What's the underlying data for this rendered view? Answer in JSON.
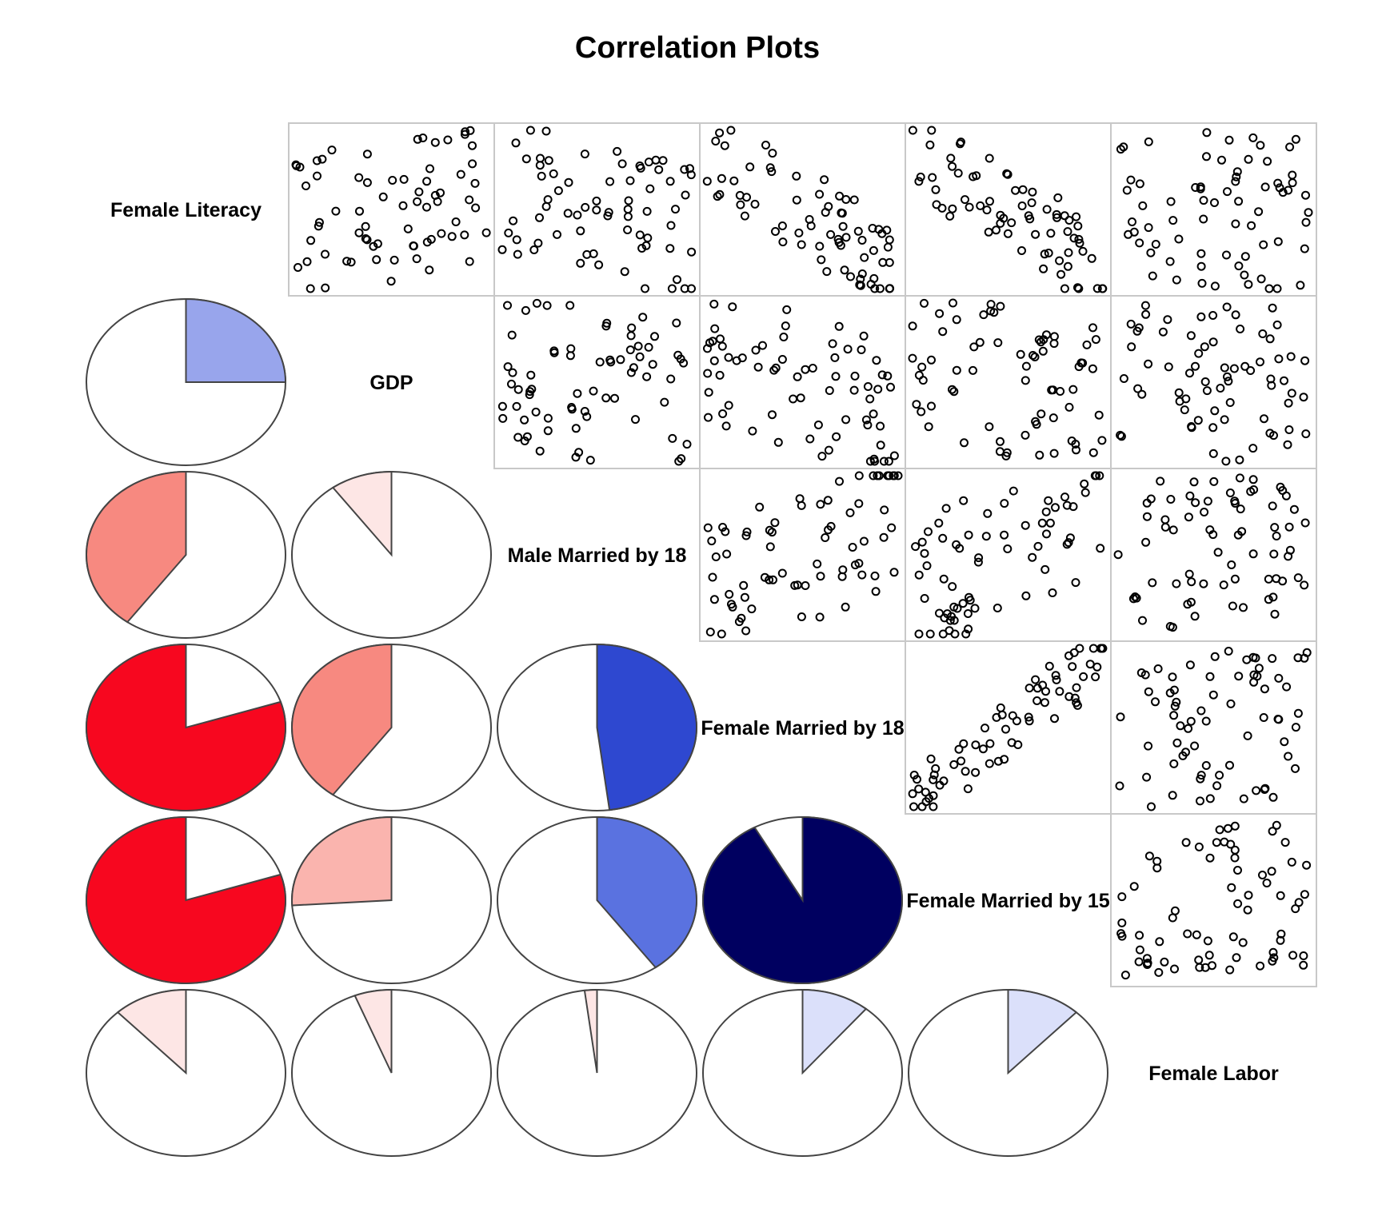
{
  "chart_data": {
    "type": "correlogram",
    "title": "Correlation Plots",
    "variables": [
      "Female Literacy",
      "GDP",
      "Male Married by 18",
      "Female Married by 18",
      "Female Married by 15",
      "Female Labor"
    ],
    "lower_panel": "pie",
    "upper_panel": "scatter",
    "colors": {
      "strong_negative": "#f7071f",
      "moderate_negative": "#f78980",
      "weak_negative": "#fab4ae",
      "very_weak_negative": "#fde6e5",
      "very_weak_positive": "#dbe0fa",
      "weak_positive": "#98a5ec",
      "moderate_positive": "#5a72e0",
      "strong_positive": "#2e48d0",
      "very_strong_positive": "#000060"
    },
    "correlations": [
      {
        "row": "GDP",
        "col": "Female Literacy",
        "r": 0.25
      },
      {
        "row": "Male Married by 18",
        "col": "Female Literacy",
        "r": -0.4
      },
      {
        "row": "Male Married by 18",
        "col": "GDP",
        "r": -0.1
      },
      {
        "row": "Female Married by 18",
        "col": "Female Literacy",
        "r": -0.8
      },
      {
        "row": "Female Married by 18",
        "col": "GDP",
        "r": -0.4
      },
      {
        "row": "Female Married by 18",
        "col": "Male Married by 18",
        "r": 0.48
      },
      {
        "row": "Female Married by 15",
        "col": "Female Literacy",
        "r": -0.8
      },
      {
        "row": "Female Married by 15",
        "col": "GDP",
        "r": -0.26
      },
      {
        "row": "Female Married by 15",
        "col": "Male Married by 18",
        "r": 0.4
      },
      {
        "row": "Female Married by 15",
        "col": "Female Married by 18",
        "r": 0.92
      },
      {
        "row": "Female Labor",
        "col": "Female Literacy",
        "r": -0.12
      },
      {
        "row": "Female Labor",
        "col": "GDP",
        "r": -0.06
      },
      {
        "row": "Female Labor",
        "col": "Male Married by 18",
        "r": -0.02
      },
      {
        "row": "Female Labor",
        "col": "Female Married by 18",
        "r": 0.11
      },
      {
        "row": "Female Labor",
        "col": "Female Married by 15",
        "r": 0.12
      }
    ],
    "scatter_seed": 7
  }
}
